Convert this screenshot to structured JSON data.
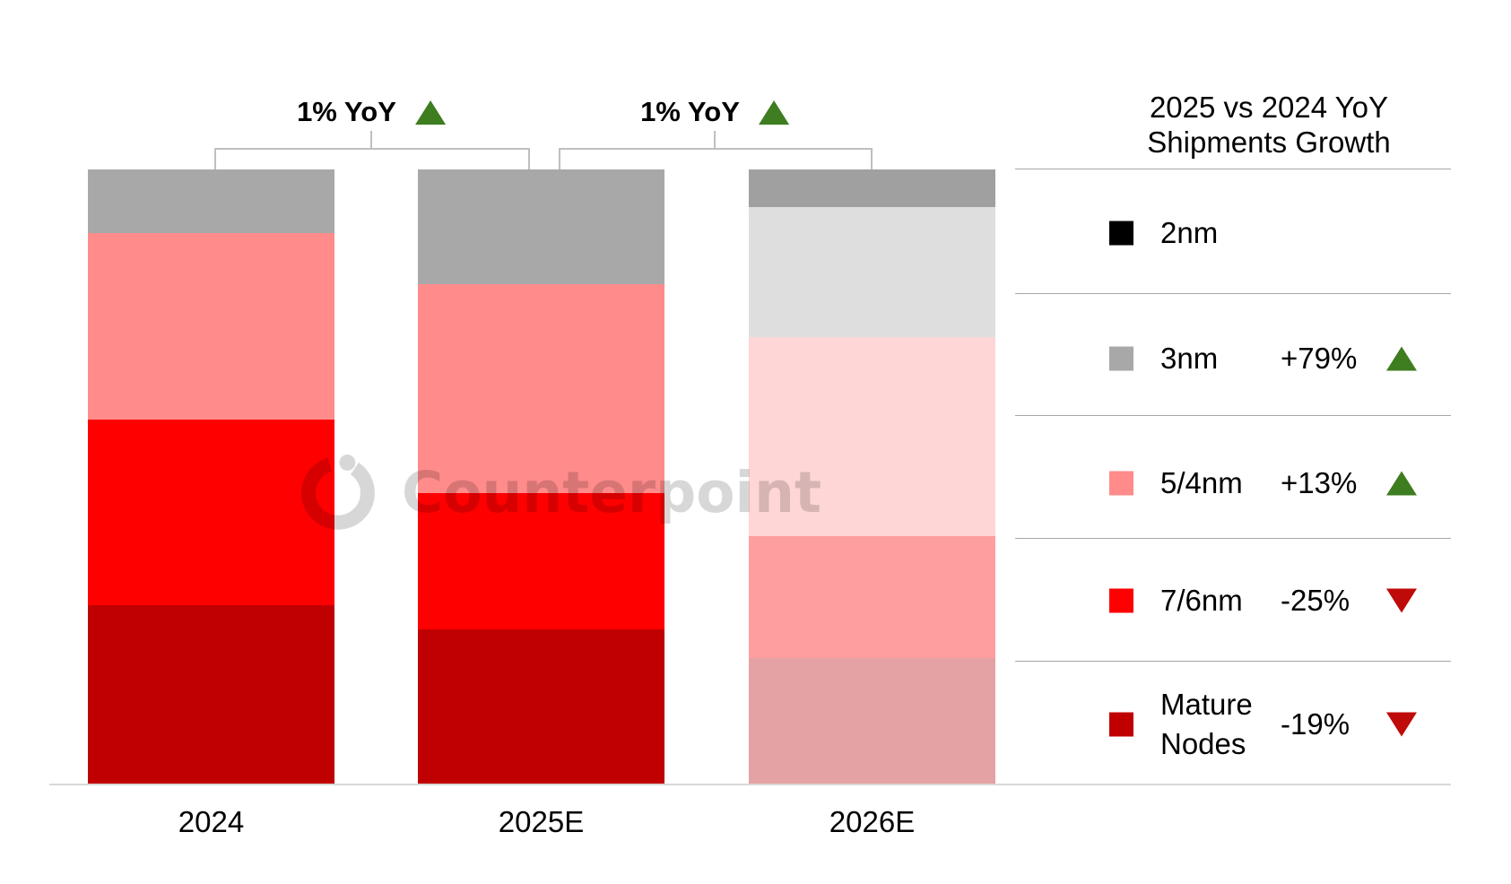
{
  "watermark": {
    "text": "Counterpoint"
  },
  "annotations": [
    {
      "label": "1% YoY",
      "direction": "up",
      "between": [
        "2024",
        "2025E"
      ]
    },
    {
      "label": "1% YoY",
      "direction": "up",
      "between": [
        "2025E",
        "2026E"
      ]
    }
  ],
  "legend": {
    "title_line1": "2025 vs 2024 YoY",
    "title_line2": "Shipments Growth",
    "items": [
      {
        "label": "2nm",
        "label2": "",
        "value": "",
        "direction": "",
        "swatch": "#000000"
      },
      {
        "label": "3nm",
        "label2": "",
        "value": "+79%",
        "direction": "up",
        "swatch": "#a8a8a8"
      },
      {
        "label": "5/4nm",
        "label2": "",
        "value": "+13%",
        "direction": "up",
        "swatch": "#ff8b8b"
      },
      {
        "label": "7/6nm",
        "label2": "",
        "value": "-25%",
        "direction": "down",
        "swatch": "#ff0000"
      },
      {
        "label": "Mature",
        "label2": "Nodes",
        "value": "-19%",
        "direction": "down",
        "swatch": "#c00000"
      }
    ]
  },
  "colors": {
    "up_triangle": "#3e7d20",
    "down_triangle": "#bf0a0a",
    "bracket_line": "#bfbfbf",
    "axis_line": "#d9d9d9",
    "legend_divider": "#a6a6a6",
    "watermark": "#d7d7d7"
  },
  "chart_data": {
    "type": "bar",
    "stacked": true,
    "title": "",
    "xlabel": "",
    "ylabel": "",
    "y_axis": "hidden",
    "grid": false,
    "legend_position": "right",
    "unit": "share of shipments, % (estimated from segment geometry; no value labels shown)",
    "categories": [
      "2024",
      "2025E",
      "2026E"
    ],
    "faded_categories": [
      "2026E"
    ],
    "series": [
      {
        "name": "2nm",
        "color": "#000000",
        "faded_color": "#a0a0a0",
        "values": [
          0,
          0,
          6.1
        ]
      },
      {
        "name": "3nm",
        "color": "#a8a8a8",
        "faded_color": "#dedede",
        "values": [
          10.3,
          18.7,
          21.1
        ]
      },
      {
        "name": "5/4nm",
        "color": "#ff8b8b",
        "faded_color": "#ffd6d6",
        "values": [
          30.3,
          34.0,
          32.4
        ]
      },
      {
        "name": "7/6nm",
        "color": "#ff0000",
        "faded_color": "#ff9e9e",
        "values": [
          30.2,
          22.2,
          19.8
        ]
      },
      {
        "name": "Mature Nodes",
        "color": "#c00000",
        "faded_color": "#e5a2a4",
        "values": [
          29.2,
          25.2,
          20.6
        ]
      }
    ],
    "bar_annotations": [
      "1% YoY up (2024 to 2025E)",
      "1% YoY up (2025E to 2026E)"
    ]
  }
}
